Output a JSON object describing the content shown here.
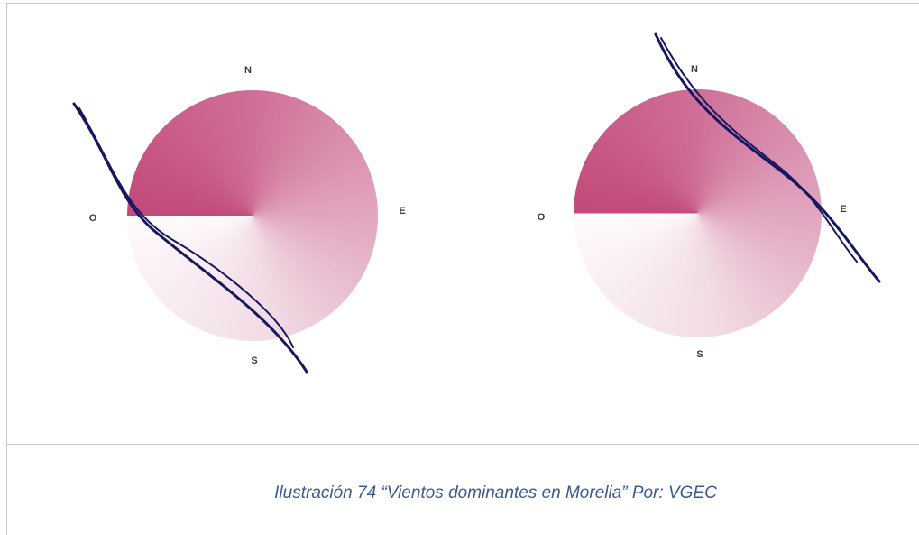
{
  "figures": [
    {
      "labels": {
        "north": "N",
        "east": "E",
        "south": "S",
        "west": "O"
      }
    },
    {
      "labels": {
        "north": "N",
        "east": "E",
        "south": "S",
        "west": "O"
      }
    }
  ],
  "caption": "Ilustración 74 “Vientos dominantes en Morelia” Por: VGEC"
}
